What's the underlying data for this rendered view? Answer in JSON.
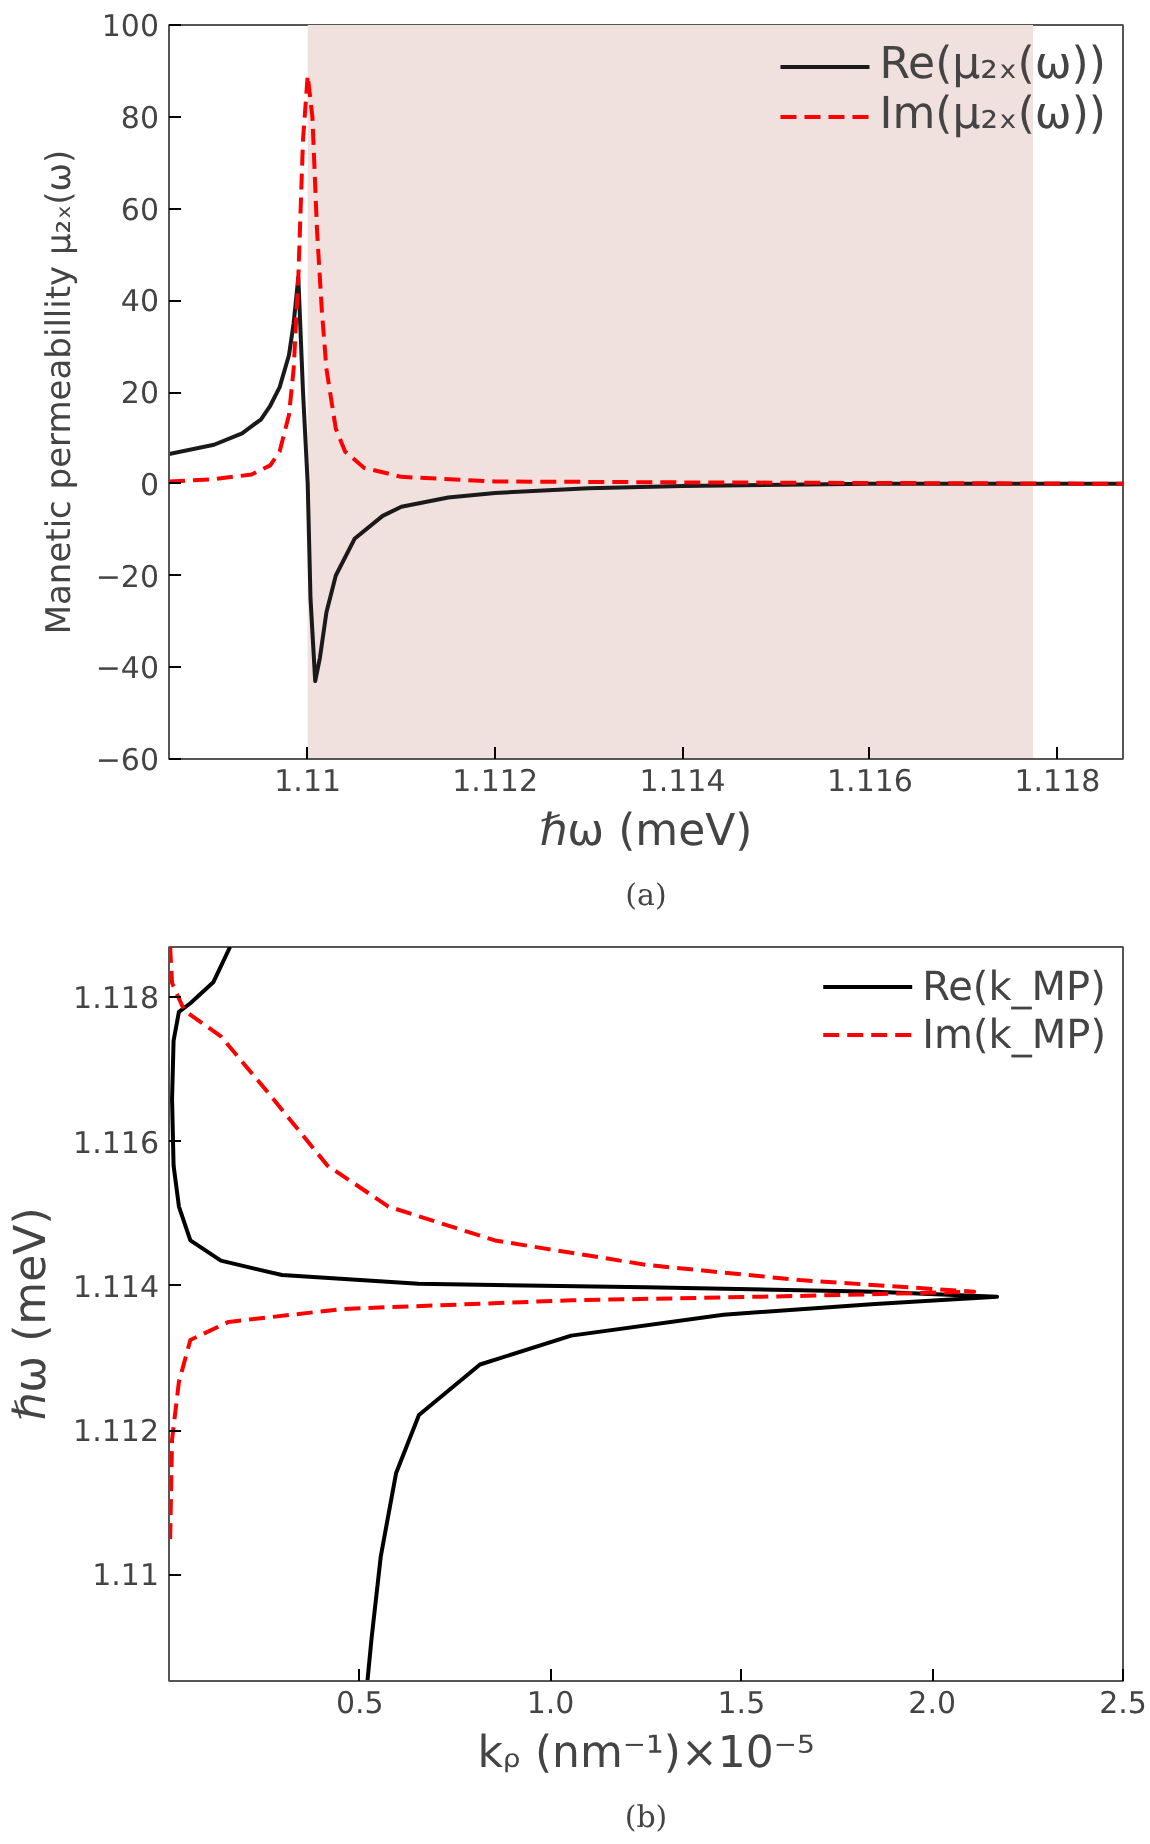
{
  "chart_data": [
    {
      "type": "line",
      "xlabel": "ℏω (meV)",
      "ylabel": "Manetic permeabillity μ₂ₓ(ω)",
      "annotations": [
        "(a)"
      ],
      "xlim": [
        1.10852,
        1.1187
      ],
      "ylim": [
        -60,
        100
      ],
      "xticks": [
        1.11,
        1.112,
        1.114,
        1.116,
        1.118
      ],
      "yticks": [
        {
          "value": -60,
          "label": "−60"
        },
        {
          "value": -40,
          "label": "−40"
        },
        {
          "value": -20,
          "label": "−20"
        },
        0,
        20,
        40,
        60,
        80,
        100
      ],
      "grid": false,
      "legend": "top right",
      "bands": [
        {
          "axis": "x",
          "from": 1.11,
          "to": 1.11774,
          "color": "#f1e1de"
        }
      ],
      "series": [
        {
          "name": "Re(μ₂ₓ(ω))",
          "color": "#1a1a1a",
          "line_style": "solid",
          "x": [
            1.10852,
            1.109,
            1.1093,
            1.1095,
            1.1096,
            1.1097,
            1.1098,
            1.10985,
            1.1099,
            1.10995,
            1.11,
            1.11003,
            1.11008,
            1.11013,
            1.1102,
            1.1103,
            1.1105,
            1.1108,
            1.111,
            1.1115,
            1.112,
            1.113,
            1.114,
            1.116,
            1.1187
          ],
          "values": [
            6.5,
            8.5,
            11,
            14,
            17,
            21,
            28,
            35,
            45,
            20,
            0,
            -25,
            -43,
            -38,
            -28,
            -20,
            -12,
            -7,
            -5,
            -3,
            -2,
            -1,
            -0.5,
            0,
            0
          ]
        },
        {
          "name": "Im(μ₂ₓ(ω))",
          "color": "#ff0000",
          "line_style": "dashed",
          "x": [
            1.10852,
            1.109,
            1.1094,
            1.1096,
            1.1097,
            1.1098,
            1.10985,
            1.1099,
            1.10995,
            1.11,
            1.11005,
            1.1101,
            1.11015,
            1.1102,
            1.1103,
            1.1104,
            1.1106,
            1.111,
            1.112,
            1.114,
            1.1187
          ],
          "values": [
            0.5,
            1,
            2,
            4,
            7,
            15,
            25,
            45,
            75,
            89,
            80,
            55,
            38,
            25,
            12,
            7,
            3.5,
            1.5,
            0.5,
            0.3,
            0
          ]
        }
      ]
    },
    {
      "type": "line",
      "xlabel": "kᵨ (nm⁻¹)×10⁻⁵",
      "ylabel": "ℏω (meV)",
      "annotations": [
        "(b)"
      ],
      "xlim": [
        0,
        2.5
      ],
      "ylim": [
        1.10852,
        1.1187
      ],
      "xticks": [
        0.5,
        {
          "value": 1,
          "label": "1.0"
        },
        1.5,
        {
          "value": 2,
          "label": "2.0"
        },
        2.5
      ],
      "yticks": [
        1.11,
        1.112,
        1.114,
        1.116,
        1.118
      ],
      "grid": false,
      "legend": "top right",
      "series": [
        {
          "name": "Re(k_MP)",
          "color": "#000000",
          "line_style": "solid",
          "x": [
            0.16,
            0.116,
            0.056,
            0.026,
            0.012,
            0.008,
            0.012,
            0.026,
            0.056,
            0.136,
            0.296,
            0.654,
            1.25,
            1.85,
            2.17,
            1.85,
            1.453,
            1.054,
            0.815,
            0.655,
            0.595,
            0.555,
            0.531,
            0.52
          ],
          "values": [
            1.1187,
            1.11821,
            1.11792,
            1.1178,
            1.1174,
            1.11659,
            1.11567,
            1.1151,
            1.11463,
            1.11435,
            1.11415,
            1.11403,
            1.11398,
            1.11392,
            1.11385,
            1.11375,
            1.1136,
            1.11331,
            1.11291,
            1.11221,
            1.1114,
            1.11025,
            1.10912,
            1.10852
          ]
        },
        {
          "name": "Im(k_MP)",
          "color": "#ff0000",
          "line_style": "dashed",
          "x": [
            0.003,
            0.008,
            0.04,
            0.136,
            0.255,
            0.415,
            0.575,
            0.854,
            1.253,
            1.653,
            2.11,
            1.653,
            1.054,
            0.455,
            0.156,
            0.056,
            0.026,
            0.008,
            0.003
          ],
          "values": [
            1.1187,
            1.1182,
            1.11782,
            1.11746,
            1.11671,
            1.11567,
            1.1151,
            1.11463,
            1.11429,
            1.11408,
            1.11392,
            1.11386,
            1.1138,
            1.11368,
            1.1135,
            1.11325,
            1.11267,
            1.11187,
            1.11048
          ]
        }
      ]
    }
  ]
}
